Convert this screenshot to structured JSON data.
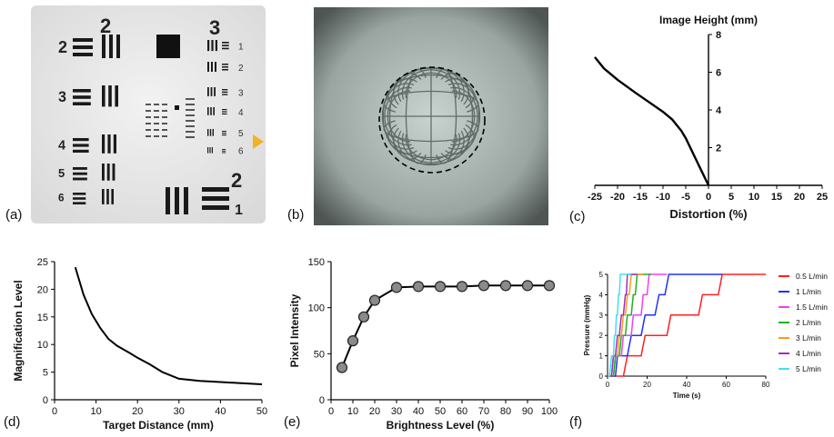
{
  "panel_labels": {
    "a": "(a)",
    "b": "(b)",
    "c": "(c)",
    "d": "(d)",
    "e": "(e)",
    "f": "(f)"
  },
  "target_image": {
    "group_numbers": [
      "2",
      "3",
      "2"
    ],
    "element_numbers_left": [
      "2",
      "3",
      "4",
      "5",
      "6"
    ],
    "element_numbers_right": [
      "1",
      "2",
      "3",
      "4",
      "5",
      "6",
      "1"
    ],
    "marker_color": "#f0b323"
  },
  "grid_image": {
    "background": "#7f8a86",
    "circle_style": "dashed"
  },
  "chart_data": [
    {
      "id": "c",
      "type": "line",
      "title": "Image Height (mm)",
      "xlabel": "Distortion (%)",
      "ylabel": "",
      "xlim": [
        -25,
        25
      ],
      "ylim": [
        0,
        8
      ],
      "xticks": [
        "-25",
        "-20",
        "-15",
        "-10",
        "-5",
        "0",
        "5",
        "10",
        "15",
        "20",
        "25"
      ],
      "yticks": [
        "2",
        "4",
        "6",
        "8"
      ],
      "series": [
        {
          "x": [
            0,
            -1,
            -2,
            -3,
            -4,
            -5,
            -6,
            -7,
            -8,
            -10,
            -13,
            -16,
            -20,
            -23,
            -25
          ],
          "y": [
            0,
            0.5,
            1.0,
            1.5,
            2.0,
            2.5,
            2.9,
            3.2,
            3.5,
            3.9,
            4.4,
            4.9,
            5.6,
            6.2,
            6.8
          ]
        }
      ],
      "line_color": "#000000"
    },
    {
      "id": "d",
      "type": "line",
      "xlabel": "Target Distance (mm)",
      "ylabel": "Magnification Level",
      "xlim": [
        0,
        50
      ],
      "ylim": [
        0,
        25
      ],
      "xticks": [
        "0",
        "10",
        "20",
        "30",
        "40",
        "50"
      ],
      "yticks": [
        "0",
        "5",
        "10",
        "15",
        "20",
        "25"
      ],
      "series": [
        {
          "x": [
            5,
            7,
            9,
            11,
            13,
            15,
            18,
            20,
            23,
            26,
            30,
            35,
            40,
            45,
            50
          ],
          "y": [
            24,
            19,
            15.5,
            13,
            11,
            9.8,
            8.5,
            7.6,
            6.4,
            5,
            3.8,
            3.4,
            3.2,
            3.0,
            2.8
          ]
        }
      ],
      "line_color": "#000000"
    },
    {
      "id": "e",
      "type": "line",
      "xlabel": "Brightness Level (%)",
      "ylabel": "Pixel Intensity",
      "xlim": [
        0,
        100
      ],
      "ylim": [
        0,
        150
      ],
      "xticks": [
        "0",
        "10",
        "20",
        "30",
        "40",
        "50",
        "60",
        "70",
        "80",
        "90",
        "100"
      ],
      "yticks": [
        "0",
        "50",
        "100",
        "150"
      ],
      "series": [
        {
          "x": [
            5,
            10,
            15,
            20,
            30,
            40,
            50,
            60,
            70,
            80,
            90,
            100
          ],
          "y": [
            35,
            64,
            90,
            108,
            122,
            123,
            123,
            123,
            124,
            124,
            124,
            124
          ]
        }
      ],
      "line_color": "#000000",
      "marker_color": "#8a8a8a"
    },
    {
      "id": "f",
      "type": "line",
      "xlabel": "Time (s)",
      "ylabel": "Pressure (mmHg)",
      "xlim": [
        0,
        80
      ],
      "ylim": [
        0,
        5
      ],
      "xticks": [
        "0",
        "20",
        "40",
        "60",
        "80"
      ],
      "yticks": [
        "0",
        "1",
        "2",
        "3",
        "4",
        "5"
      ],
      "legend_position": "right",
      "series": [
        {
          "name": "0.5 L/min",
          "color": "#ff2020",
          "x": [
            0,
            8,
            10,
            17,
            19,
            30,
            32,
            46,
            48,
            56,
            58,
            80
          ],
          "y": [
            0,
            0,
            1,
            1,
            2,
            2,
            3,
            3,
            4,
            4,
            5,
            5
          ]
        },
        {
          "name": "1 L/min",
          "color": "#2030ff",
          "x": [
            0,
            4,
            5,
            10,
            12,
            17,
            19,
            24,
            26,
            29,
            31,
            58
          ],
          "y": [
            0,
            0,
            1,
            1,
            2,
            2,
            3,
            3,
            4,
            4,
            5,
            5
          ]
        },
        {
          "name": "1.5 L/min",
          "color": "#f040f0",
          "x": [
            0,
            3,
            4,
            7,
            8,
            12,
            13,
            17,
            18,
            20,
            21,
            30
          ],
          "y": [
            0,
            0,
            1,
            1,
            2,
            2,
            3,
            3,
            4,
            4,
            5,
            5
          ]
        },
        {
          "name": "2 L/min",
          "color": "#20b020",
          "x": [
            0,
            3,
            4,
            6,
            7,
            9,
            10,
            12,
            13,
            14,
            15,
            22
          ],
          "y": [
            0,
            0,
            1,
            1,
            2,
            2,
            3,
            3,
            4,
            4,
            5,
            5
          ]
        },
        {
          "name": "3 L/min",
          "color": "#ff9a20",
          "x": [
            0,
            2,
            3,
            5,
            6,
            7,
            8,
            9,
            10,
            11,
            12,
            18
          ],
          "y": [
            0,
            0,
            1,
            1,
            2,
            2,
            3,
            3,
            4,
            4,
            5,
            5
          ]
        },
        {
          "name": "4 L/min",
          "color": "#9a30c0",
          "x": [
            0,
            2,
            3,
            4,
            5,
            6,
            7,
            8,
            9,
            9.5,
            10,
            15
          ],
          "y": [
            0,
            0,
            1,
            1,
            2,
            2,
            3,
            3,
            4,
            4,
            5,
            5
          ]
        },
        {
          "name": "5 L/min",
          "color": "#40e0f0",
          "x": [
            0,
            1,
            2,
            3,
            3.5,
            4,
            4.5,
            5,
            5.5,
            6,
            6.5,
            12
          ],
          "y": [
            0,
            0,
            1,
            1,
            2,
            2,
            3,
            3,
            4,
            4,
            5,
            5
          ]
        }
      ]
    }
  ]
}
